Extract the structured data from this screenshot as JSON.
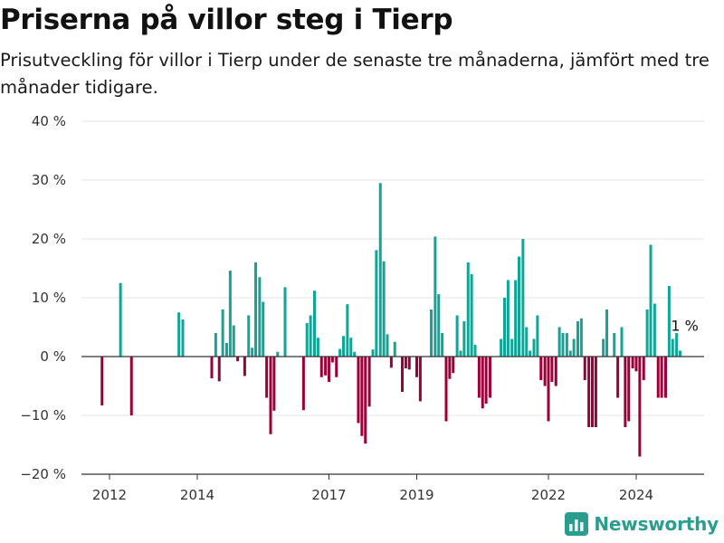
{
  "title": "Priserna på villor steg i Tierp",
  "subtitle": "Prisutveckling för villor i Tierp under de senaste tre månaderna, jämfört med tre månader tidigare.",
  "brand": {
    "name": "Newsworthy",
    "icon": "bar-chart-logo-icon"
  },
  "colors": {
    "positive": "#13a496",
    "negative": "#9b0039",
    "axis": "#333333",
    "grid": "#e3e3e3",
    "brand": "#2a9d8f"
  },
  "chart_data": {
    "type": "bar",
    "ylim": [
      -20,
      40
    ],
    "y_ticks": [
      40,
      30,
      20,
      10,
      0,
      -10,
      -20
    ],
    "y_tick_labels": [
      "40 %",
      "30 %",
      "20 %",
      "10 %",
      "0 %",
      "−10 %",
      "−20 %"
    ],
    "x_ticks": [
      2012,
      2014,
      2017,
      2019,
      2022,
      2024
    ],
    "x_tick_labels": [
      "2012",
      "2014",
      "2017",
      "2019",
      "2022",
      "2024"
    ],
    "grid": true,
    "annotation": {
      "label": "1 %",
      "x": 2025.08,
      "y": 1
    },
    "bars": [
      {
        "x": 2011.83,
        "y": -8.3
      },
      {
        "x": 2012.25,
        "y": 12.5
      },
      {
        "x": 2012.5,
        "y": -10
      },
      {
        "x": 2013.58,
        "y": 7.5
      },
      {
        "x": 2013.67,
        "y": 6.3
      },
      {
        "x": 2014.33,
        "y": -3.7
      },
      {
        "x": 2014.42,
        "y": 4
      },
      {
        "x": 2014.5,
        "y": -4.2
      },
      {
        "x": 2014.58,
        "y": 8
      },
      {
        "x": 2014.67,
        "y": 2.3
      },
      {
        "x": 2014.75,
        "y": 14.6
      },
      {
        "x": 2014.83,
        "y": 5.3
      },
      {
        "x": 2014.92,
        "y": -0.8
      },
      {
        "x": 2015.08,
        "y": -3.3
      },
      {
        "x": 2015.17,
        "y": 7
      },
      {
        "x": 2015.25,
        "y": 1.5
      },
      {
        "x": 2015.33,
        "y": 16
      },
      {
        "x": 2015.42,
        "y": 13.5
      },
      {
        "x": 2015.5,
        "y": 9.3
      },
      {
        "x": 2015.58,
        "y": -7
      },
      {
        "x": 2015.67,
        "y": -13.2
      },
      {
        "x": 2015.75,
        "y": -9.2
      },
      {
        "x": 2015.83,
        "y": 0.8
      },
      {
        "x": 2016,
        "y": 11.8
      },
      {
        "x": 2016.42,
        "y": -9.1
      },
      {
        "x": 2016.5,
        "y": 5.7
      },
      {
        "x": 2016.58,
        "y": 7
      },
      {
        "x": 2016.67,
        "y": 11.2
      },
      {
        "x": 2016.75,
        "y": 3.2
      },
      {
        "x": 2016.83,
        "y": -3.5
      },
      {
        "x": 2016.92,
        "y": -3.2
      },
      {
        "x": 2017,
        "y": -4.3
      },
      {
        "x": 2017.08,
        "y": -1
      },
      {
        "x": 2017.17,
        "y": -3.5
      },
      {
        "x": 2017.25,
        "y": 1.3
      },
      {
        "x": 2017.33,
        "y": 3.5
      },
      {
        "x": 2017.42,
        "y": 8.9
      },
      {
        "x": 2017.5,
        "y": 3.2
      },
      {
        "x": 2017.58,
        "y": 0.8
      },
      {
        "x": 2017.67,
        "y": -11.3
      },
      {
        "x": 2017.75,
        "y": -13.5
      },
      {
        "x": 2017.83,
        "y": -14.8
      },
      {
        "x": 2017.92,
        "y": -8.5
      },
      {
        "x": 2018,
        "y": 1.2
      },
      {
        "x": 2018.08,
        "y": 18.1
      },
      {
        "x": 2018.17,
        "y": 29.5
      },
      {
        "x": 2018.25,
        "y": 16.2
      },
      {
        "x": 2018.33,
        "y": 3.8
      },
      {
        "x": 2018.42,
        "y": -1.9
      },
      {
        "x": 2018.5,
        "y": 2.5
      },
      {
        "x": 2018.67,
        "y": -6
      },
      {
        "x": 2018.75,
        "y": -2
      },
      {
        "x": 2018.83,
        "y": -2.2
      },
      {
        "x": 2019,
        "y": -3.5
      },
      {
        "x": 2019.08,
        "y": -7.6
      },
      {
        "x": 2019.33,
        "y": 8
      },
      {
        "x": 2019.42,
        "y": 20.4
      },
      {
        "x": 2019.5,
        "y": 10.6
      },
      {
        "x": 2019.58,
        "y": 4
      },
      {
        "x": 2019.67,
        "y": -11
      },
      {
        "x": 2019.75,
        "y": -3.8
      },
      {
        "x": 2019.83,
        "y": -2.8
      },
      {
        "x": 2019.92,
        "y": 7
      },
      {
        "x": 2020,
        "y": 1
      },
      {
        "x": 2020.08,
        "y": 6
      },
      {
        "x": 2020.17,
        "y": 16
      },
      {
        "x": 2020.25,
        "y": 14
      },
      {
        "x": 2020.33,
        "y": 2
      },
      {
        "x": 2020.42,
        "y": -7
      },
      {
        "x": 2020.5,
        "y": -8.8
      },
      {
        "x": 2020.58,
        "y": -8
      },
      {
        "x": 2020.67,
        "y": -7
      },
      {
        "x": 2020.92,
        "y": 3
      },
      {
        "x": 2021,
        "y": 10
      },
      {
        "x": 2021.08,
        "y": 13
      },
      {
        "x": 2021.17,
        "y": 3
      },
      {
        "x": 2021.25,
        "y": 13
      },
      {
        "x": 2021.33,
        "y": 17
      },
      {
        "x": 2021.42,
        "y": 20
      },
      {
        "x": 2021.5,
        "y": 5
      },
      {
        "x": 2021.58,
        "y": 1
      },
      {
        "x": 2021.67,
        "y": 3
      },
      {
        "x": 2021.75,
        "y": 7
      },
      {
        "x": 2021.83,
        "y": -4
      },
      {
        "x": 2021.92,
        "y": -5
      },
      {
        "x": 2022,
        "y": -11
      },
      {
        "x": 2022.08,
        "y": -4.3
      },
      {
        "x": 2022.17,
        "y": -5
      },
      {
        "x": 2022.25,
        "y": 5
      },
      {
        "x": 2022.33,
        "y": 4
      },
      {
        "x": 2022.42,
        "y": 4
      },
      {
        "x": 2022.5,
        "y": 1
      },
      {
        "x": 2022.58,
        "y": 3
      },
      {
        "x": 2022.67,
        "y": 6
      },
      {
        "x": 2022.75,
        "y": 6.5
      },
      {
        "x": 2022.83,
        "y": -4
      },
      {
        "x": 2022.92,
        "y": -12
      },
      {
        "x": 2023,
        "y": -12
      },
      {
        "x": 2023.08,
        "y": -12
      },
      {
        "x": 2023.25,
        "y": 3
      },
      {
        "x": 2023.33,
        "y": 8
      },
      {
        "x": 2023.5,
        "y": 4
      },
      {
        "x": 2023.58,
        "y": -7
      },
      {
        "x": 2023.67,
        "y": 5
      },
      {
        "x": 2023.75,
        "y": -12
      },
      {
        "x": 2023.83,
        "y": -11
      },
      {
        "x": 2023.92,
        "y": -2
      },
      {
        "x": 2024,
        "y": -2.5
      },
      {
        "x": 2024.08,
        "y": -17
      },
      {
        "x": 2024.17,
        "y": -4
      },
      {
        "x": 2024.25,
        "y": 8
      },
      {
        "x": 2024.33,
        "y": 19
      },
      {
        "x": 2024.42,
        "y": 9
      },
      {
        "x": 2024.5,
        "y": -7
      },
      {
        "x": 2024.58,
        "y": -7
      },
      {
        "x": 2024.67,
        "y": -7
      },
      {
        "x": 2024.75,
        "y": 12
      },
      {
        "x": 2024.83,
        "y": 3
      },
      {
        "x": 2024.92,
        "y": 4
      },
      {
        "x": 2025,
        "y": 1
      }
    ]
  }
}
